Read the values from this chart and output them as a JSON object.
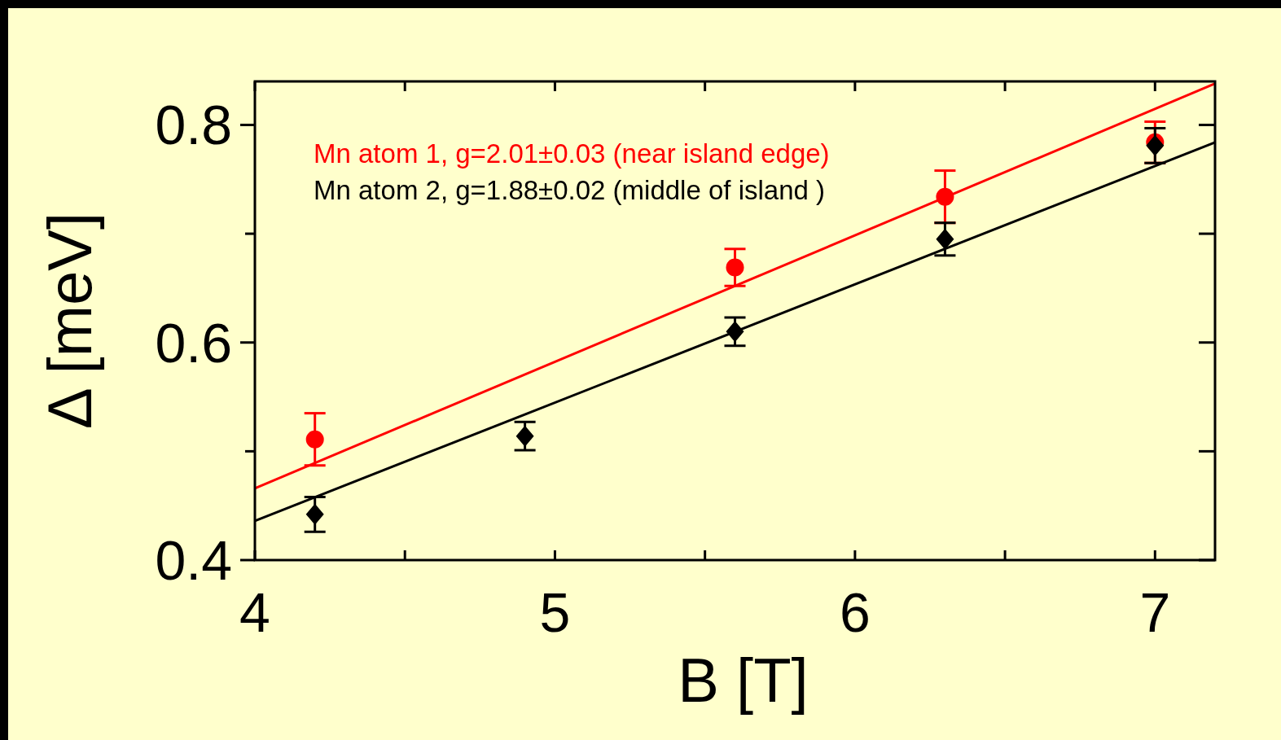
{
  "chart_data": {
    "type": "scatter",
    "xlabel": "B [T]",
    "ylabel": "Δ [meV]",
    "xlim": [
      4,
      7.2
    ],
    "ylim": [
      0.4,
      0.84
    ],
    "xticks": [
      4,
      {
        "value": 4.5,
        "label": null
      },
      5,
      {
        "value": 5.5,
        "label": null
      },
      6,
      {
        "value": 6.5,
        "label": null
      },
      7
    ],
    "yticks": [
      0.4,
      {
        "value": 0.5,
        "label": null
      },
      0.6,
      {
        "value": 0.7,
        "label": null
      },
      0.8
    ],
    "grid": false,
    "legend": "top left",
    "series": [
      {
        "name": "Mn atom 1, g=2.01±0.03 (near island edge)",
        "color": "#ff0000",
        "marker": "circle",
        "x": [
          4.2,
          5.6,
          6.3,
          7
        ],
        "values": [
          0.511,
          0.669,
          0.734,
          0.784
        ],
        "errors": [
          0.024,
          0.017,
          0.024,
          0.019
        ]
      },
      {
        "name": "Mn atom 2, g=1.88±0.02 (middle of island )",
        "color": "#000000",
        "marker": "diamond",
        "x": [
          4.2,
          4.9,
          5.6,
          6.3,
          7
        ],
        "values": [
          0.442,
          0.514,
          0.61,
          0.695,
          0.781
        ],
        "errors": [
          0.016,
          0.013,
          0.013,
          0.015,
          0.016
        ]
      },
      {
        "type": "line",
        "color": "#ff0000",
        "x": [
          4,
          7.2
        ],
        "values": [
          0.466,
          0.838
        ]
      },
      {
        "type": "line",
        "color": "#000000",
        "x": [
          4,
          7.2
        ],
        "values": [
          0.436,
          0.784
        ]
      }
    ]
  }
}
